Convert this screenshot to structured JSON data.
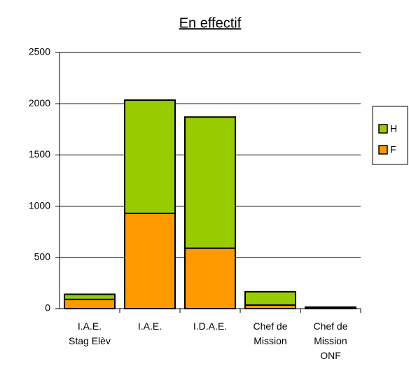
{
  "chart_data": {
    "type": "stacked_bar",
    "title": "En effectif",
    "categories": [
      "I.A.E.\nStag Elèv",
      "I.A.E.",
      "I.D.A.E.",
      "Chef de\nMission",
      "Chef de\nMission\nONF"
    ],
    "series": [
      {
        "name": "F",
        "color": "#ff9900",
        "values": [
          90,
          930,
          590,
          35,
          5
        ]
      },
      {
        "name": "H",
        "color": "#99cc00",
        "values": [
          50,
          1105,
          1280,
          130,
          10
        ]
      }
    ],
    "ylim": [
      0,
      2500
    ],
    "yticks": [
      0,
      500,
      1000,
      1500,
      2000,
      2500
    ],
    "grid": true,
    "legend": "right"
  }
}
